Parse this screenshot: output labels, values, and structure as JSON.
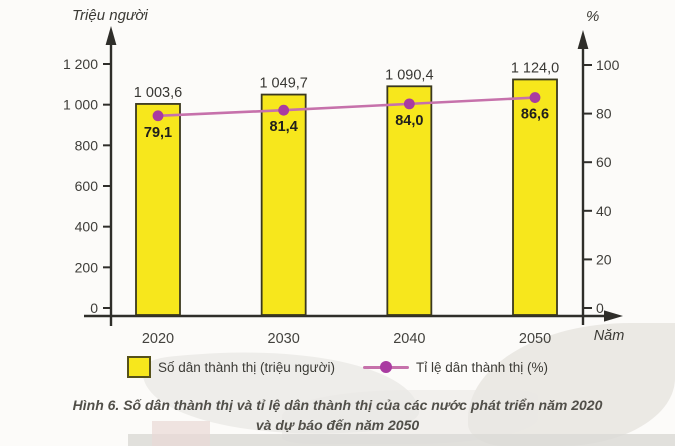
{
  "figure": {
    "caption_line1": "Hình 6. Số dân thành thị và tỉ lệ dân thành thị của các nước phát triển năm 2020",
    "caption_line2": "và dự báo đến năm 2050"
  },
  "legend": {
    "bar_label": "Số dân thành thị (triệu người)",
    "line_label": "Tỉ lệ dân thành thị (%)"
  },
  "colors": {
    "bar_fill": "#f7e71c",
    "bar_border": "#3a381f",
    "line": "#c671ab",
    "marker": "#a93ba1",
    "axis": "#2f2e2a"
  },
  "chart_data": {
    "type": "combo",
    "title": "Hình 6. Số dân thành thị và tỉ lệ dân thành thị của các nước phát triển năm 2020 và dự báo đến năm 2050",
    "categories": [
      "2020",
      "2030",
      "2040",
      "2050"
    ],
    "series": [
      {
        "name": "Số dân thành thị (triệu người)",
        "type": "bar",
        "axis": "left",
        "values": [
          1003.6,
          1049.7,
          1090.4,
          1124.0
        ],
        "labels": [
          "1 003,6",
          "1 049,7",
          "1 090,4",
          "1 124,0"
        ]
      },
      {
        "name": "Tỉ lệ dân thành thị (%)",
        "type": "line",
        "axis": "right",
        "values": [
          79.1,
          81.4,
          84.0,
          86.6
        ],
        "labels": [
          "79,1",
          "81,4",
          "84,0",
          "86,6"
        ]
      }
    ],
    "left_axis": {
      "title": "Triệu người",
      "ylim": [
        0,
        1300
      ],
      "ticks": [
        0,
        200,
        400,
        600,
        800,
        1000,
        1200
      ],
      "tick_labels": [
        "0",
        "200",
        "400",
        "600",
        "800",
        "1 000",
        "1 200"
      ]
    },
    "right_axis": {
      "title": "%",
      "ylim": [
        0,
        110
      ],
      "ticks": [
        0,
        20,
        40,
        60,
        80,
        100
      ],
      "tick_labels": [
        "0",
        "20",
        "40",
        "60",
        "80",
        "100"
      ]
    },
    "x_axis": {
      "title": "Năm"
    },
    "grid": false,
    "legend_position": "bottom"
  }
}
